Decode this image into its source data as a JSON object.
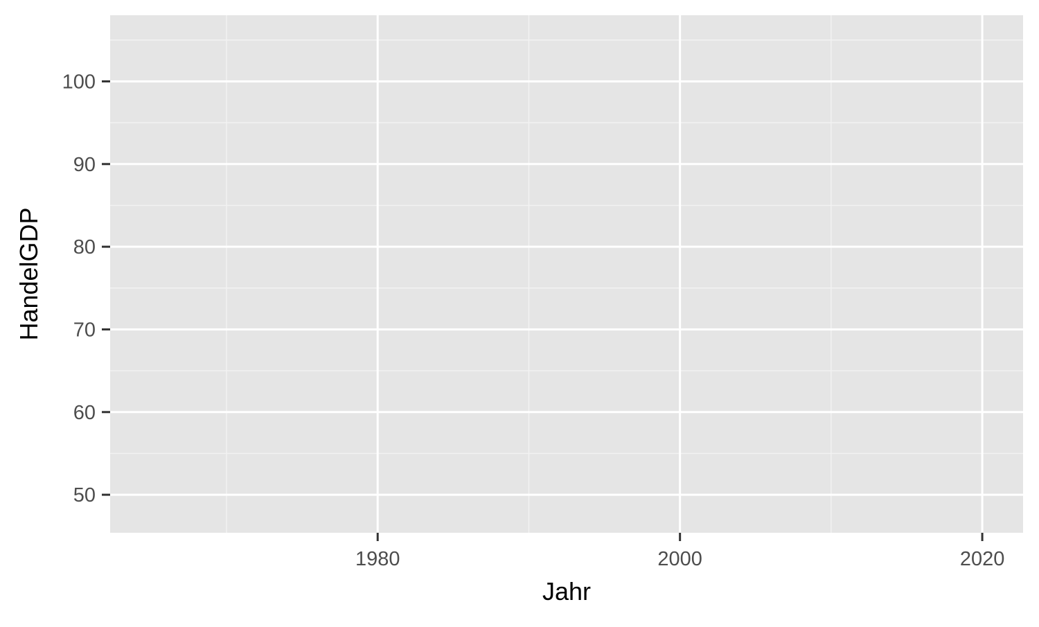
{
  "chart_data": {
    "type": "line",
    "title": "",
    "xlabel": "Jahr",
    "ylabel": "HandelGDP",
    "xlim": [
      1962.3,
      2022.7
    ],
    "ylim": [
      45.4,
      108.0
    ],
    "x_major_ticks": [
      1980,
      2000,
      2020
    ],
    "x_minor_ticks": [
      1970,
      1990,
      2010
    ],
    "y_major_ticks": [
      50,
      60,
      70,
      80,
      90,
      100
    ],
    "y_minor_ticks": [
      55,
      65,
      75,
      85,
      95,
      105
    ],
    "x_tick_labels": [
      "1980",
      "2000",
      "2020"
    ],
    "y_tick_labels": [
      "50",
      "60",
      "70",
      "80",
      "90",
      "100"
    ],
    "series": [],
    "grid": true,
    "legend": "none",
    "colors": {
      "panel_background": "#E5E5E5",
      "grid_major": "#FFFFFF",
      "grid_minor": "#F2F2F2",
      "tick_mark": "#333333",
      "tick_label": "#4D4D4D",
      "axis_title": "#000000"
    }
  }
}
